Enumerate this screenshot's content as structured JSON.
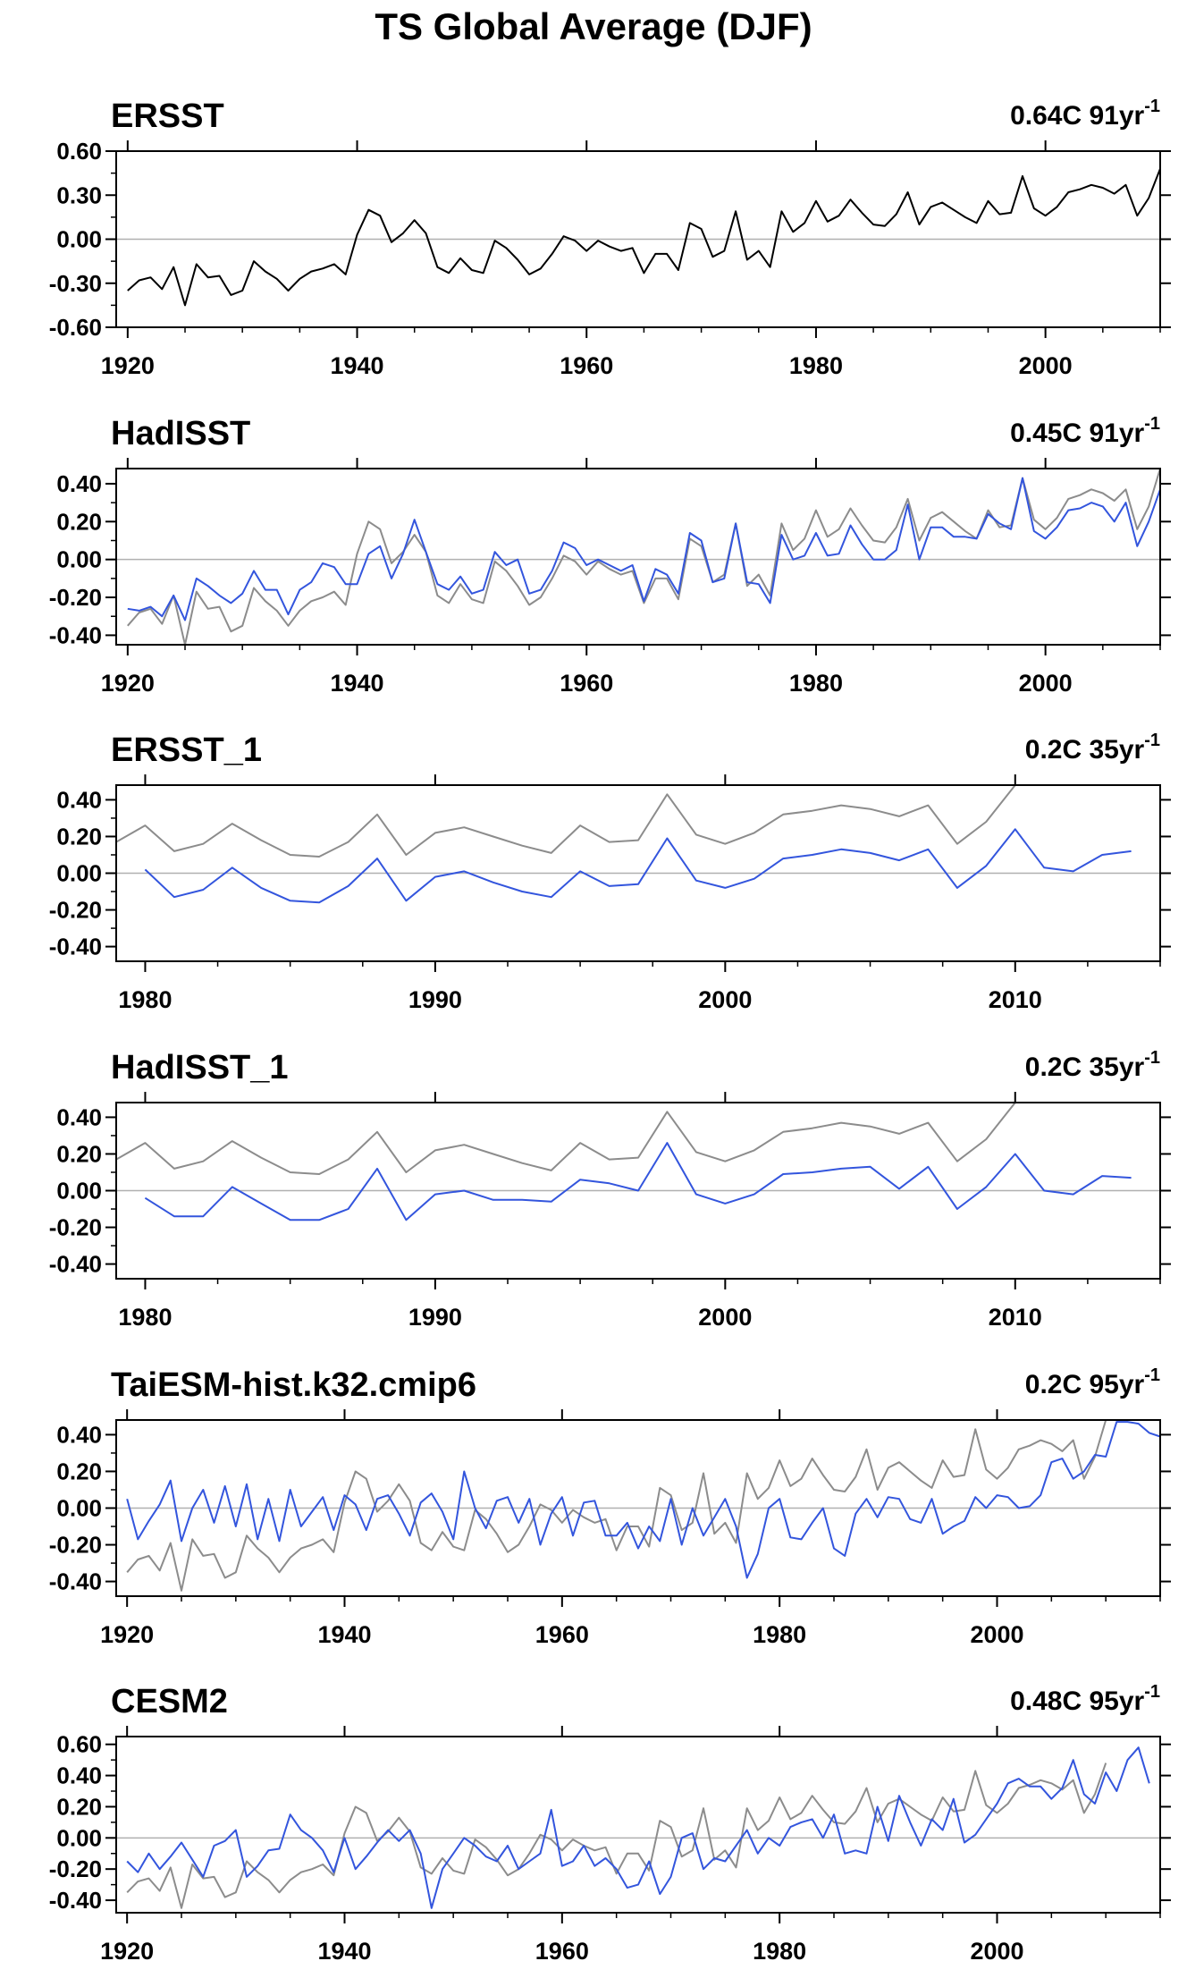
{
  "title": "TS Global Average (DJF)",
  "colors": {
    "obs": "#000000",
    "ref": "#8c8c8c",
    "model": "#3355dd"
  },
  "chart_data": [
    {
      "type": "line",
      "title": "ERSST",
      "trend_label": "0.64C 91yr",
      "trend_sup": "-1",
      "xlim": [
        1919,
        2010
      ],
      "ylim": [
        -0.6,
        0.6
      ],
      "xticks": [
        1920,
        1940,
        1960,
        1980,
        2000
      ],
      "yticks": [
        -0.6,
        -0.3,
        0.0,
        0.3,
        0.6
      ],
      "ytick_labels": [
        "-0.60",
        "-0.30",
        "0.00",
        "0.30",
        "0.60"
      ],
      "series": [
        {
          "role": "obs",
          "x_start": 1920,
          "values": [
            -0.35,
            -0.28,
            -0.26,
            -0.34,
            -0.19,
            -0.45,
            -0.17,
            -0.26,
            -0.25,
            -0.38,
            -0.35,
            -0.15,
            -0.22,
            -0.27,
            -0.35,
            -0.27,
            -0.22,
            -0.2,
            -0.17,
            -0.24,
            0.03,
            0.2,
            0.16,
            -0.02,
            0.04,
            0.13,
            0.04,
            -0.19,
            -0.23,
            -0.13,
            -0.21,
            -0.23,
            -0.01,
            -0.06,
            -0.14,
            -0.24,
            -0.2,
            -0.1,
            0.02,
            -0.01,
            -0.08,
            -0.01,
            -0.05,
            -0.08,
            -0.06,
            -0.23,
            -0.1,
            -0.1,
            -0.21,
            0.11,
            0.07,
            -0.12,
            -0.08,
            0.19,
            -0.14,
            -0.08,
            -0.19,
            0.19,
            0.05,
            0.11,
            0.26,
            0.12,
            0.16,
            0.27,
            0.18,
            0.1,
            0.09,
            0.17,
            0.32,
            0.1,
            0.22,
            0.25,
            0.2,
            0.15,
            0.11,
            0.26,
            0.17,
            0.18,
            0.43,
            0.21,
            0.16,
            0.22,
            0.32,
            0.34,
            0.37,
            0.35,
            0.31,
            0.37,
            0.16,
            0.28,
            0.48
          ]
        }
      ]
    },
    {
      "type": "line",
      "title": "HadISST",
      "trend_label": "0.45C 91yr",
      "trend_sup": "-1",
      "xlim": [
        1919,
        2010
      ],
      "ylim": [
        -0.45,
        0.48
      ],
      "xticks": [
        1920,
        1940,
        1960,
        1980,
        2000
      ],
      "yticks": [
        -0.4,
        -0.2,
        0.0,
        0.2,
        0.4
      ],
      "ytick_labels": [
        "-0.40",
        "-0.20",
        "0.00",
        "0.20",
        "0.40"
      ],
      "series": [
        {
          "role": "ref",
          "x_start": 1920,
          "values": [
            -0.35,
            -0.28,
            -0.26,
            -0.34,
            -0.19,
            -0.45,
            -0.17,
            -0.26,
            -0.25,
            -0.38,
            -0.35,
            -0.15,
            -0.22,
            -0.27,
            -0.35,
            -0.27,
            -0.22,
            -0.2,
            -0.17,
            -0.24,
            0.03,
            0.2,
            0.16,
            -0.02,
            0.04,
            0.13,
            0.04,
            -0.19,
            -0.23,
            -0.13,
            -0.21,
            -0.23,
            -0.01,
            -0.06,
            -0.14,
            -0.24,
            -0.2,
            -0.1,
            0.02,
            -0.01,
            -0.08,
            -0.01,
            -0.05,
            -0.08,
            -0.06,
            -0.23,
            -0.1,
            -0.1,
            -0.21,
            0.11,
            0.07,
            -0.12,
            -0.08,
            0.19,
            -0.14,
            -0.08,
            -0.19,
            0.19,
            0.05,
            0.11,
            0.26,
            0.12,
            0.16,
            0.27,
            0.18,
            0.1,
            0.09,
            0.17,
            0.32,
            0.1,
            0.22,
            0.25,
            0.2,
            0.15,
            0.11,
            0.26,
            0.17,
            0.18,
            0.43,
            0.21,
            0.16,
            0.22,
            0.32,
            0.34,
            0.37,
            0.35,
            0.31,
            0.37,
            0.16,
            0.28,
            0.48
          ]
        },
        {
          "role": "model",
          "x_start": 1920,
          "values": [
            -0.26,
            -0.27,
            -0.25,
            -0.3,
            -0.19,
            -0.32,
            -0.1,
            -0.14,
            -0.19,
            -0.23,
            -0.18,
            -0.06,
            -0.16,
            -0.16,
            -0.29,
            -0.16,
            -0.12,
            -0.02,
            -0.04,
            -0.13,
            -0.13,
            0.03,
            0.07,
            -0.1,
            0.03,
            0.21,
            0.04,
            -0.13,
            -0.16,
            -0.09,
            -0.18,
            -0.16,
            0.04,
            -0.03,
            0.0,
            -0.18,
            -0.16,
            -0.06,
            0.09,
            0.06,
            -0.03,
            0.0,
            -0.03,
            -0.06,
            -0.03,
            -0.22,
            -0.05,
            -0.08,
            -0.18,
            0.14,
            0.1,
            -0.12,
            -0.1,
            0.19,
            -0.12,
            -0.13,
            -0.23,
            0.13,
            0.0,
            0.02,
            0.14,
            0.02,
            0.03,
            0.18,
            0.08,
            0.0,
            0.0,
            0.05,
            0.29,
            0.0,
            0.17,
            0.17,
            0.12,
            0.12,
            0.11,
            0.24,
            0.19,
            0.16,
            0.43,
            0.15,
            0.11,
            0.17,
            0.26,
            0.27,
            0.3,
            0.28,
            0.2,
            0.3,
            0.07,
            0.2,
            0.37
          ]
        }
      ]
    },
    {
      "type": "line",
      "title": "ERSST_1",
      "trend_label": "0.2C 35yr",
      "trend_sup": "-1",
      "xlim": [
        1979,
        2015
      ],
      "ylim": [
        -0.48,
        0.48
      ],
      "xticks": [
        1980,
        1990,
        2000,
        2010
      ],
      "yticks": [
        -0.4,
        -0.2,
        0.0,
        0.2,
        0.4
      ],
      "ytick_labels": [
        "-0.40",
        "-0.20",
        "0.00",
        "0.20",
        "0.40"
      ],
      "series": [
        {
          "role": "ref",
          "x_start": 1979,
          "values": [
            0.17,
            0.26,
            0.12,
            0.16,
            0.27,
            0.18,
            0.1,
            0.09,
            0.17,
            0.32,
            0.1,
            0.22,
            0.25,
            0.2,
            0.15,
            0.11,
            0.26,
            0.17,
            0.18,
            0.43,
            0.21,
            0.16,
            0.22,
            0.32,
            0.34,
            0.37,
            0.35,
            0.31,
            0.37,
            0.16,
            0.28,
            0.48
          ]
        },
        {
          "role": "model",
          "x_start": 1980,
          "values": [
            0.02,
            -0.13,
            -0.09,
            0.03,
            -0.08,
            -0.15,
            -0.16,
            -0.07,
            0.08,
            -0.15,
            -0.02,
            0.01,
            -0.05,
            -0.1,
            -0.13,
            0.01,
            -0.07,
            -0.06,
            0.19,
            -0.04,
            -0.08,
            -0.03,
            0.08,
            0.1,
            0.13,
            0.11,
            0.07,
            0.13,
            -0.08,
            0.04,
            0.24,
            0.03,
            0.01,
            0.1,
            0.12
          ]
        }
      ]
    },
    {
      "type": "line",
      "title": "HadISST_1",
      "trend_label": "0.2C 35yr",
      "trend_sup": "-1",
      "xlim": [
        1979,
        2015
      ],
      "ylim": [
        -0.48,
        0.48
      ],
      "xticks": [
        1980,
        1990,
        2000,
        2010
      ],
      "yticks": [
        -0.4,
        -0.2,
        0.0,
        0.2,
        0.4
      ],
      "ytick_labels": [
        "-0.40",
        "-0.20",
        "0.00",
        "0.20",
        "0.40"
      ],
      "series": [
        {
          "role": "ref",
          "x_start": 1979,
          "values": [
            0.17,
            0.26,
            0.12,
            0.16,
            0.27,
            0.18,
            0.1,
            0.09,
            0.17,
            0.32,
            0.1,
            0.22,
            0.25,
            0.2,
            0.15,
            0.11,
            0.26,
            0.17,
            0.18,
            0.43,
            0.21,
            0.16,
            0.22,
            0.32,
            0.34,
            0.37,
            0.35,
            0.31,
            0.37,
            0.16,
            0.28,
            0.48
          ]
        },
        {
          "role": "model",
          "x_start": 1980,
          "values": [
            -0.04,
            -0.14,
            -0.14,
            0.02,
            -0.07,
            -0.16,
            -0.16,
            -0.1,
            0.12,
            -0.16,
            -0.02,
            0.0,
            -0.05,
            -0.05,
            -0.06,
            0.06,
            0.04,
            0.0,
            0.26,
            -0.02,
            -0.07,
            -0.02,
            0.09,
            0.1,
            0.12,
            0.13,
            0.01,
            0.13,
            -0.1,
            0.02,
            0.2,
            0.0,
            -0.02,
            0.08,
            0.07
          ]
        }
      ]
    },
    {
      "type": "line",
      "title": "TaiESM-hist.k32.cmip6",
      "trend_label": "0.2C 95yr",
      "trend_sup": "-1",
      "xlim": [
        1919,
        2015
      ],
      "ylim": [
        -0.48,
        0.48
      ],
      "xticks": [
        1920,
        1940,
        1960,
        1980,
        2000
      ],
      "yticks": [
        -0.4,
        -0.2,
        0.0,
        0.2,
        0.4
      ],
      "ytick_labels": [
        "-0.40",
        "-0.20",
        "0.00",
        "0.20",
        "0.40"
      ],
      "series": [
        {
          "role": "ref",
          "x_start": 1920,
          "values": [
            -0.35,
            -0.28,
            -0.26,
            -0.34,
            -0.19,
            -0.45,
            -0.17,
            -0.26,
            -0.25,
            -0.38,
            -0.35,
            -0.15,
            -0.22,
            -0.27,
            -0.35,
            -0.27,
            -0.22,
            -0.2,
            -0.17,
            -0.24,
            0.03,
            0.2,
            0.16,
            -0.02,
            0.04,
            0.13,
            0.04,
            -0.19,
            -0.23,
            -0.13,
            -0.21,
            -0.23,
            -0.01,
            -0.06,
            -0.14,
            -0.24,
            -0.2,
            -0.1,
            0.02,
            -0.01,
            -0.08,
            -0.01,
            -0.05,
            -0.08,
            -0.06,
            -0.23,
            -0.1,
            -0.1,
            -0.21,
            0.11,
            0.07,
            -0.12,
            -0.08,
            0.19,
            -0.14,
            -0.08,
            -0.19,
            0.19,
            0.05,
            0.11,
            0.26,
            0.12,
            0.16,
            0.27,
            0.18,
            0.1,
            0.09,
            0.17,
            0.32,
            0.1,
            0.22,
            0.25,
            0.2,
            0.15,
            0.11,
            0.26,
            0.17,
            0.18,
            0.43,
            0.21,
            0.16,
            0.22,
            0.32,
            0.34,
            0.37,
            0.35,
            0.31,
            0.37,
            0.16,
            0.28,
            0.48
          ]
        },
        {
          "role": "model",
          "x_start": 1920,
          "values": [
            0.05,
            -0.17,
            -0.07,
            0.02,
            0.15,
            -0.18,
            0.0,
            0.1,
            -0.08,
            0.12,
            -0.1,
            0.13,
            -0.17,
            0.05,
            -0.18,
            0.1,
            -0.1,
            -0.02,
            0.06,
            -0.12,
            0.07,
            0.02,
            -0.12,
            0.05,
            0.07,
            -0.03,
            -0.15,
            0.03,
            0.08,
            -0.02,
            -0.17,
            0.2,
            0.0,
            -0.11,
            0.04,
            0.06,
            -0.08,
            0.05,
            -0.2,
            -0.03,
            0.06,
            -0.15,
            0.03,
            0.04,
            -0.15,
            -0.15,
            -0.08,
            -0.22,
            -0.1,
            -0.18,
            0.05,
            -0.2,
            0.0,
            -0.15,
            -0.05,
            0.05,
            -0.1,
            -0.38,
            -0.25,
            0.0,
            0.05,
            -0.16,
            -0.17,
            -0.08,
            0.0,
            -0.22,
            -0.26,
            -0.03,
            0.05,
            -0.05,
            0.06,
            0.05,
            -0.06,
            -0.08,
            0.05,
            -0.14,
            -0.1,
            -0.07,
            0.06,
            0.0,
            0.07,
            0.06,
            0.0,
            0.01,
            0.07,
            0.25,
            0.27,
            0.16,
            0.2,
            0.29,
            0.28,
            0.47,
            0.47,
            0.46,
            0.41,
            0.39
          ]
        }
      ]
    },
    {
      "type": "line",
      "title": "CESM2",
      "trend_label": "0.48C 95yr",
      "trend_sup": "-1",
      "xlim": [
        1919,
        2015
      ],
      "ylim": [
        -0.48,
        0.65
      ],
      "xticks": [
        1920,
        1940,
        1960,
        1980,
        2000
      ],
      "yticks": [
        -0.4,
        -0.2,
        0.0,
        0.2,
        0.4,
        0.6
      ],
      "ytick_labels": [
        "-0.40",
        "-0.20",
        "0.00",
        "0.20",
        "0.40",
        "0.60"
      ],
      "series": [
        {
          "role": "ref",
          "x_start": 1920,
          "values": [
            -0.35,
            -0.28,
            -0.26,
            -0.34,
            -0.19,
            -0.45,
            -0.17,
            -0.26,
            -0.25,
            -0.38,
            -0.35,
            -0.15,
            -0.22,
            -0.27,
            -0.35,
            -0.27,
            -0.22,
            -0.2,
            -0.17,
            -0.24,
            0.03,
            0.2,
            0.16,
            -0.02,
            0.04,
            0.13,
            0.04,
            -0.19,
            -0.23,
            -0.13,
            -0.21,
            -0.23,
            -0.01,
            -0.06,
            -0.14,
            -0.24,
            -0.2,
            -0.1,
            0.02,
            -0.01,
            -0.08,
            -0.01,
            -0.05,
            -0.08,
            -0.06,
            -0.23,
            -0.1,
            -0.1,
            -0.21,
            0.11,
            0.07,
            -0.12,
            -0.08,
            0.19,
            -0.14,
            -0.08,
            -0.19,
            0.19,
            0.05,
            0.11,
            0.26,
            0.12,
            0.16,
            0.27,
            0.18,
            0.1,
            0.09,
            0.17,
            0.32,
            0.1,
            0.22,
            0.25,
            0.2,
            0.15,
            0.11,
            0.26,
            0.17,
            0.18,
            0.43,
            0.21,
            0.16,
            0.22,
            0.32,
            0.34,
            0.37,
            0.35,
            0.31,
            0.37,
            0.16,
            0.28,
            0.48
          ]
        },
        {
          "role": "model",
          "x_start": 1920,
          "values": [
            -0.15,
            -0.22,
            -0.1,
            -0.2,
            -0.12,
            -0.03,
            -0.14,
            -0.25,
            -0.05,
            -0.02,
            0.05,
            -0.25,
            -0.18,
            -0.08,
            -0.07,
            0.15,
            0.05,
            0.0,
            -0.08,
            -0.22,
            0.0,
            -0.2,
            -0.12,
            -0.03,
            0.05,
            -0.02,
            0.05,
            -0.1,
            -0.45,
            -0.2,
            -0.1,
            0.0,
            -0.05,
            -0.12,
            -0.15,
            -0.05,
            -0.2,
            -0.15,
            -0.1,
            0.18,
            -0.18,
            -0.15,
            -0.05,
            -0.18,
            -0.13,
            -0.2,
            -0.32,
            -0.3,
            -0.15,
            -0.36,
            -0.25,
            0.0,
            0.03,
            -0.2,
            -0.13,
            -0.15,
            -0.05,
            0.05,
            -0.1,
            0.0,
            -0.05,
            0.07,
            0.1,
            0.12,
            0.0,
            0.15,
            -0.1,
            -0.08,
            -0.1,
            0.2,
            -0.02,
            0.27,
            0.1,
            -0.05,
            0.12,
            0.05,
            0.25,
            -0.03,
            0.02,
            0.12,
            0.22,
            0.35,
            0.38,
            0.33,
            0.33,
            0.25,
            0.32,
            0.5,
            0.28,
            0.22,
            0.42,
            0.3,
            0.5,
            0.58,
            0.35
          ]
        }
      ]
    }
  ]
}
